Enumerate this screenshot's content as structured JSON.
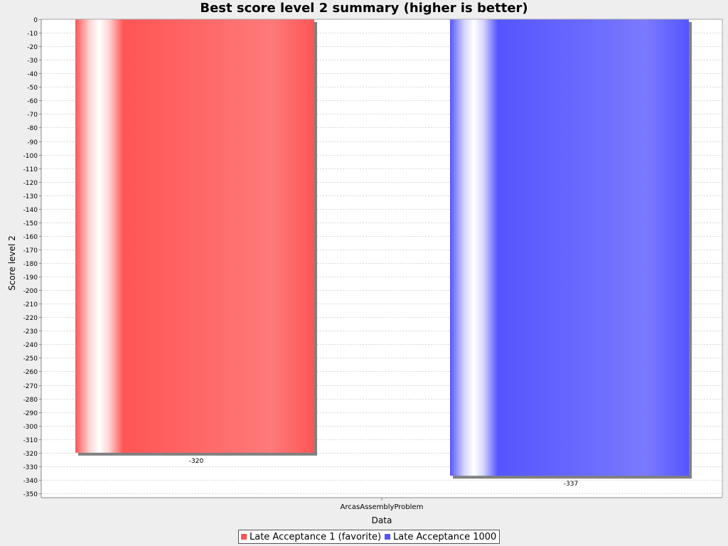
{
  "chart_data": {
    "type": "bar",
    "title": "Best score level 2 summary (higher is better)",
    "xlabel": "Data",
    "ylabel": "Score level 2",
    "categories": [
      "ArcasAssemblyProblem"
    ],
    "series": [
      {
        "name": "Late Acceptance 1 (favorite)",
        "values": [
          -320
        ],
        "color": "#ff5555"
      },
      {
        "name": "Late Acceptance 1000",
        "values": [
          -337
        ],
        "color": "#5555ff"
      }
    ],
    "ylim": [
      -350,
      0
    ],
    "ytick_step": 10,
    "data_labels": [
      "-320",
      "-337"
    ],
    "grid": true,
    "legend_position": "bottom"
  }
}
